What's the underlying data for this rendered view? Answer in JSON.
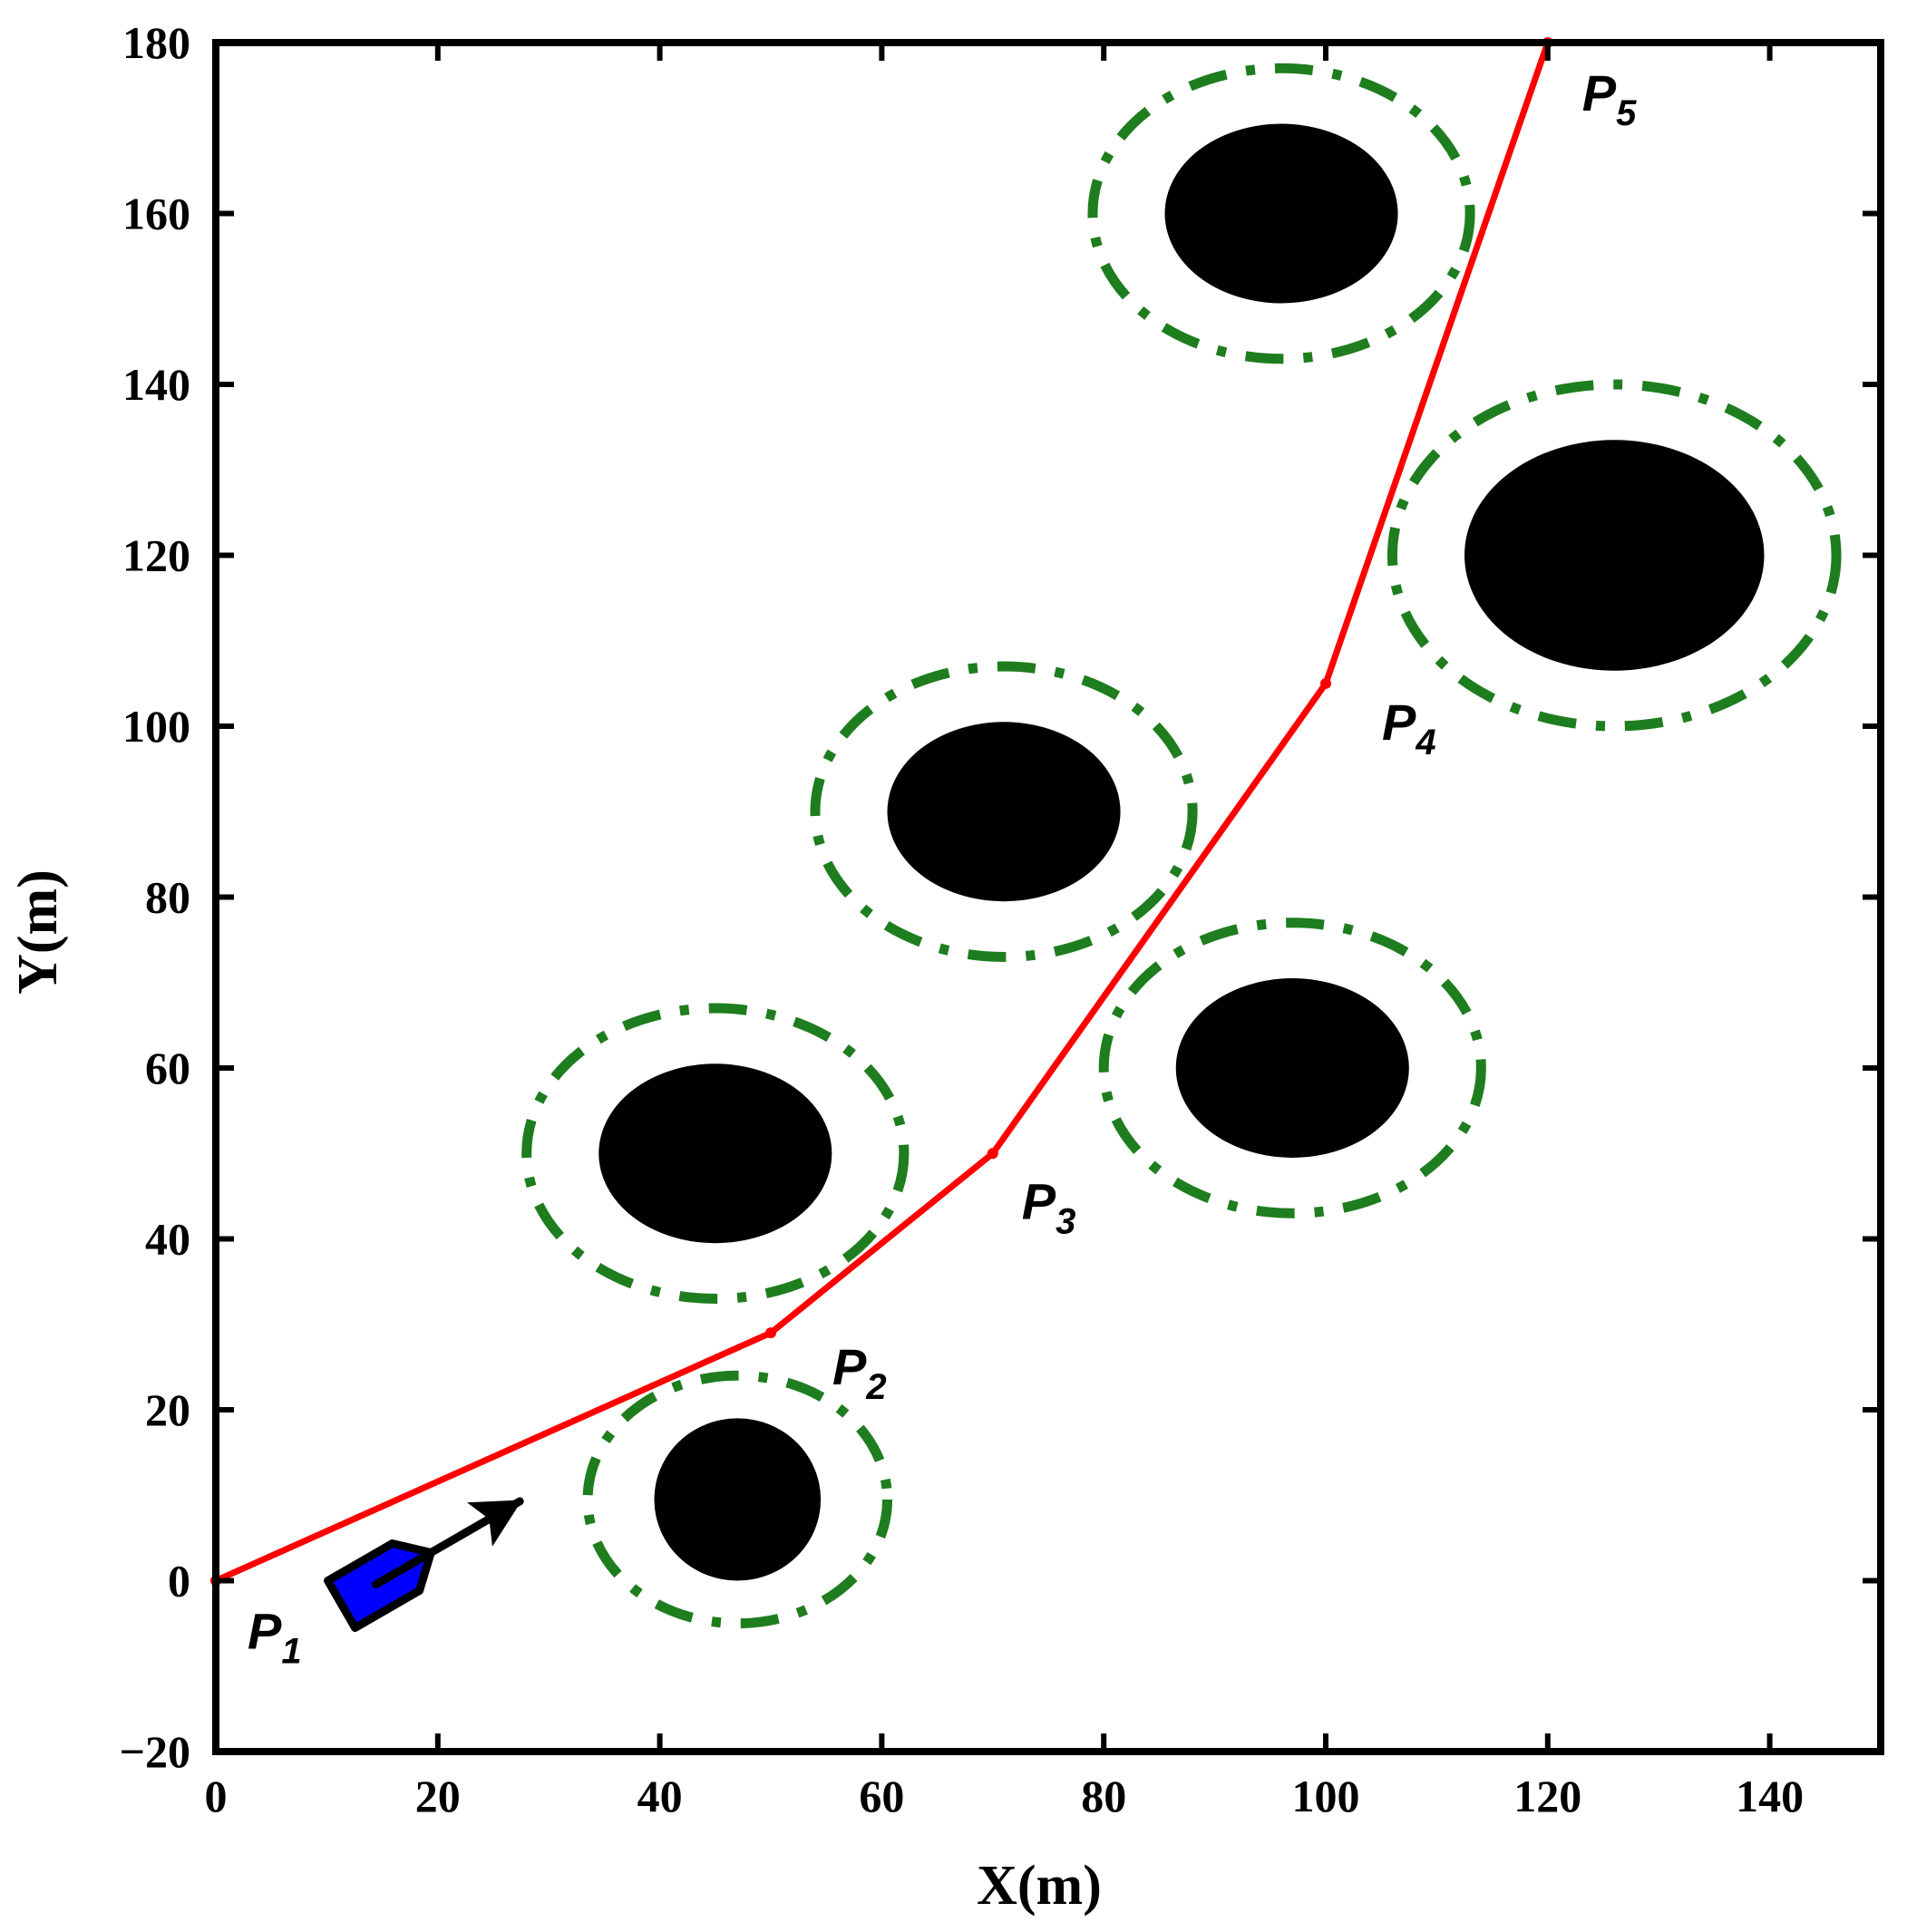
{
  "chart_data": {
    "type": "scatter",
    "title": "",
    "xlabel": "X(m)",
    "ylabel": "Y(m)",
    "xlim": [
      0,
      150
    ],
    "ylim": [
      -20,
      180
    ],
    "xticks": [
      0,
      20,
      40,
      60,
      80,
      100,
      120,
      140
    ],
    "yticks": [
      -20,
      0,
      20,
      40,
      60,
      80,
      100,
      120,
      140,
      160,
      180
    ],
    "xtick_labels": [
      "0",
      "20",
      "40",
      "60",
      "80",
      "100",
      "120",
      "140"
    ],
    "ytick_labels": [
      "−20",
      "0",
      "20",
      "40",
      "60",
      "80",
      "100",
      "120",
      "140",
      "160",
      "180"
    ],
    "grid": false,
    "path": {
      "color": "#ff0000",
      "points": [
        {
          "label": "P",
          "sub": "1",
          "x": 0,
          "y": 0
        },
        {
          "label": "P",
          "sub": "2",
          "x": 50,
          "y": 29
        },
        {
          "label": "P",
          "sub": "3",
          "x": 70,
          "y": 50
        },
        {
          "label": "P",
          "sub": "4",
          "x": 100,
          "y": 105
        },
        {
          "label": "P",
          "sub": "5",
          "x": 120,
          "y": 180
        }
      ]
    },
    "obstacles": {
      "fill_color": "#000000",
      "boundary_color": "#1e7d1e",
      "items": [
        {
          "cx": 47,
          "cy": 9.5,
          "rx": 7.5,
          "ry": 9.5,
          "bx": 13.5,
          "by": 14.5
        },
        {
          "cx": 45,
          "cy": 50,
          "rx": 10.5,
          "ry": 10.5,
          "bx": 17,
          "by": 17
        },
        {
          "cx": 71,
          "cy": 90,
          "rx": 10.5,
          "ry": 10.5,
          "bx": 17,
          "by": 17
        },
        {
          "cx": 97,
          "cy": 60,
          "rx": 10.5,
          "ry": 10.5,
          "bx": 17,
          "by": 17
        },
        {
          "cx": 96,
          "cy": 160,
          "rx": 10.5,
          "ry": 10.5,
          "bx": 17,
          "by": 17
        },
        {
          "cx": 126,
          "cy": 120,
          "rx": 13.5,
          "ry": 13.5,
          "bx": 20,
          "by": 20
        }
      ]
    },
    "vessel": {
      "fill_color": "#0000ff",
      "x": 15,
      "y": 0,
      "heading_deg": 30
    }
  }
}
